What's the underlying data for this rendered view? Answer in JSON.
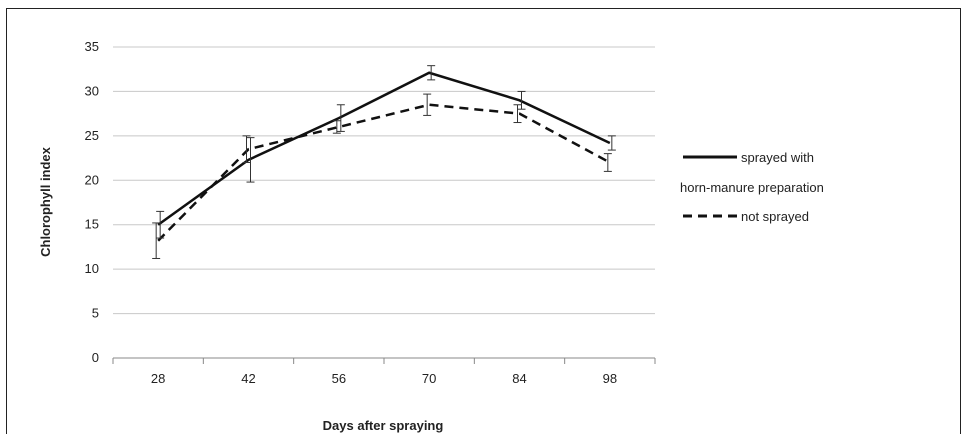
{
  "chart_data": {
    "type": "line",
    "title": "",
    "xlabel": "Days after spraying",
    "ylabel": "Chlorophyll index",
    "categories": [
      "28",
      "42",
      "56",
      "70",
      "84",
      "98"
    ],
    "ylim": [
      0,
      35
    ],
    "yticks": [
      0,
      5,
      10,
      15,
      20,
      25,
      30,
      35
    ],
    "grid": true,
    "legend_position": "right",
    "series": [
      {
        "name_lines": [
          "sprayed with",
          "horn-manure preparation"
        ],
        "name": "sprayed with horn-manure preparation",
        "style": "solid",
        "values": [
          15.0,
          22.3,
          27.0,
          32.1,
          29.0,
          24.2
        ],
        "error": [
          1.5,
          2.5,
          1.5,
          0.8,
          1.0,
          0.8
        ]
      },
      {
        "name": "not sprayed",
        "style": "dashed",
        "values": [
          13.2,
          23.5,
          26.0,
          28.5,
          27.5,
          22.0
        ],
        "error": [
          2.0,
          1.5,
          0.7,
          1.2,
          1.0,
          1.0
        ]
      }
    ]
  },
  "colors": {
    "line": "#111111",
    "grid": "#c8c8c8",
    "axis": "#888888"
  }
}
